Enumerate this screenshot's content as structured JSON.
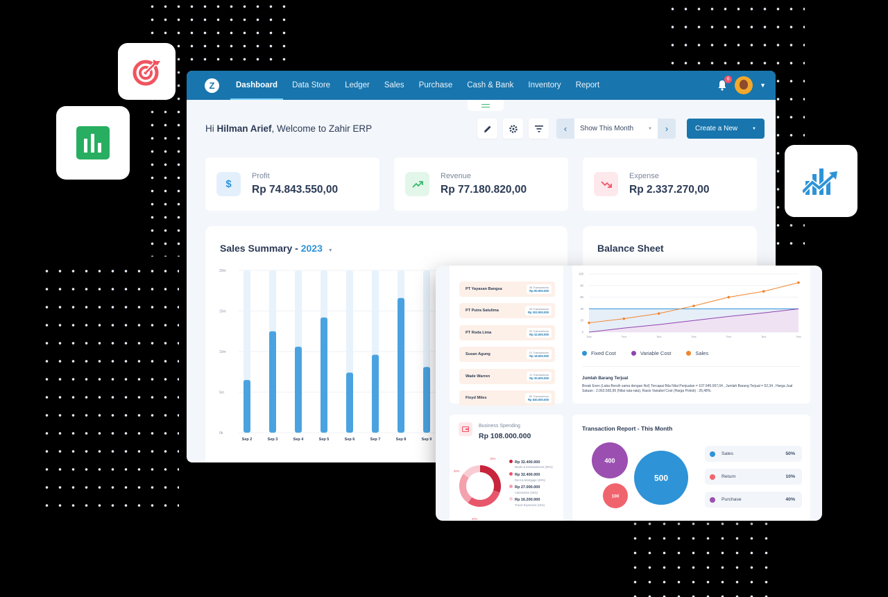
{
  "nav": {
    "items": [
      "Dashboard",
      "Data Store",
      "Ledger",
      "Sales",
      "Purchase",
      "Cash & Bank",
      "Inventory",
      "Report"
    ],
    "notification_count": "6",
    "brand_color": "#1875ad"
  },
  "header": {
    "greeting_prefix": "Hi",
    "user_name": "Hilman Arief",
    "greeting_suffix": ", Welcome to Zahir ERP",
    "period_label": "Show This Month",
    "create_label": "Create a New"
  },
  "kpis": [
    {
      "label": "Profit",
      "value": "Rp 74.843.550,00",
      "icon": "dollar-icon",
      "accent": "#2e93d7"
    },
    {
      "label": "Revenue",
      "value": "Rp 77.180.820,00",
      "icon": "trend-up-icon",
      "accent": "#39b86f"
    },
    {
      "label": "Expense",
      "value": "Rp 2.337.270,00",
      "icon": "trend-down-icon",
      "accent": "#f0546a"
    }
  ],
  "sales_summary": {
    "title": "Sales Summary - ",
    "year": "2023"
  },
  "balance_sheet": {
    "title": "Balance Sheet"
  },
  "chart_data": [
    {
      "type": "bar",
      "title": "Sales Summary - 2023",
      "categories": [
        "Sep 2",
        "Sep 3",
        "Sep 4",
        "Sep 5",
        "Sep 6",
        "Sep 7",
        "Sep 8",
        "Sep 9"
      ],
      "values": [
        6.5,
        12.5,
        10.6,
        14.2,
        7.4,
        9.6,
        16.6,
        8.1
      ],
      "y_ticks": [
        "20m",
        "15m",
        "10m",
        "5m",
        "0k"
      ],
      "ylim": [
        0,
        20
      ],
      "color": "#4aa3e0",
      "track_color": "#e8f2fb"
    },
    {
      "type": "line",
      "x_ticks": [
        "Text",
        "Text",
        "Text",
        "Text",
        "Text",
        "Text",
        "Text"
      ],
      "y_ticks": [
        "100",
        "80",
        "60",
        "40",
        "20",
        "0"
      ],
      "ylim": [
        0,
        100
      ],
      "series": [
        {
          "name": "Fixed Cost",
          "values": [
            40,
            40,
            40,
            40,
            40,
            40,
            40
          ],
          "color": "#2e93d7"
        },
        {
          "name": "Variable Cost",
          "values": [
            0,
            7,
            13,
            20,
            27,
            33,
            40
          ],
          "color": "#8e44ad"
        },
        {
          "name": "Sales",
          "values": [
            16,
            23,
            32,
            45,
            60,
            70,
            85
          ],
          "color": "#f0852d"
        }
      ]
    },
    {
      "type": "pie",
      "title": "Business Spending",
      "labels": [
        "Meals & Entertainment",
        "Rent & Mortgage",
        "Automotive",
        "Travel Expenses"
      ],
      "values": [
        30,
        30,
        25,
        15
      ],
      "colors": [
        "#c8243c",
        "#e8566b",
        "#f2a1ad",
        "#f7cdd3"
      ]
    },
    {
      "type": "scatter",
      "title": "Transaction Report - This Month",
      "series": [
        {
          "name": "Sales",
          "value": 500,
          "percent": "50%",
          "color": "#2e93d7"
        },
        {
          "name": "Return",
          "value": 100,
          "percent": "10%",
          "color": "#f0646e"
        },
        {
          "name": "Purchase",
          "value": 400,
          "percent": "40%",
          "color": "#9b4fb0"
        }
      ]
    }
  ],
  "customers": [
    {
      "name": "PT Yayasan Bangsa",
      "tx": "35 Transactions",
      "amt": "Rp 90.000.000"
    },
    {
      "name": "PT Putra Satulima",
      "tx": "30 Transactions",
      "amt": "Rp 102.000.000"
    },
    {
      "name": "PT Roda Lima",
      "tx": "20 Transactions",
      "amt": "Rp 32.000.000"
    },
    {
      "name": "Susan Agung",
      "tx": "21 Transactions",
      "amt": "Rp 18.000.000"
    },
    {
      "name": "Wade Warren",
      "tx": "11 Transactions",
      "amt": "Rp 30.000.000"
    },
    {
      "name": "Floyd Miles",
      "tx": "80 Transactions",
      "amt": "Rp 630.000.000"
    }
  ],
  "balance_note": {
    "heading": "Jumlah Barang Terjual",
    "text": "Break Even (Laba Bersih sama dengan Nol) Tercapai Bila Nilai Penjualan = 107.945.067,04 , Jumlah Barang Terjual = 52,34 , Harga Jual Satuan : 2.062.565,95 (Nilai rata-rata), Rasio Variabel Cost (Harga Pokok) : 26,48%."
  },
  "spending": {
    "label": "Business Spending",
    "total": "Rp 108.000.000",
    "items": [
      {
        "amount": "Rp 32.400.000",
        "desc": "Meals & Entertainment (30%)"
      },
      {
        "amount": "Rp 32.400.000",
        "desc": "Rent & Mortgage (30%)"
      },
      {
        "amount": "Rp 27.000.000",
        "desc": "Automotive (25%)"
      },
      {
        "amount": "Rp 16.200.000",
        "desc": "Travel Expenses (15%)"
      }
    ],
    "donut_labels": [
      "30%",
      "15%",
      "30%"
    ]
  },
  "transaction": {
    "title": "Transaction Report - This Month",
    "bubbles": [
      "400",
      "500",
      "100"
    ],
    "rows": [
      {
        "label": "Sales",
        "pct": "50%"
      },
      {
        "label": "Return",
        "pct": "10%"
      },
      {
        "label": "Purchase",
        "pct": "40%"
      }
    ]
  }
}
